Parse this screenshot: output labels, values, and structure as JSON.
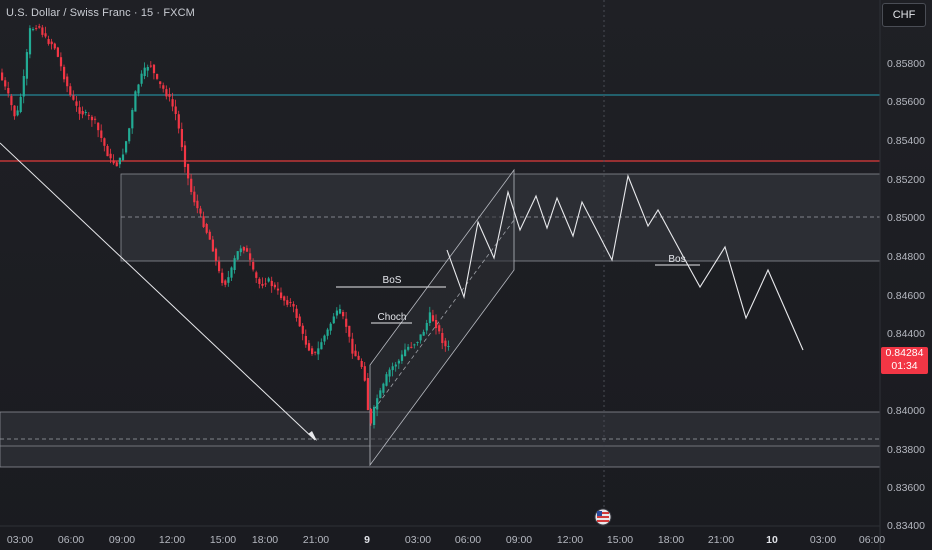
{
  "header": {
    "title": "U.S. Dollar / Swiss Franc · 15 · FXCM",
    "currency_button": "CHF"
  },
  "price_axis": {
    "labels": [
      "0.85800",
      "0.85600",
      "0.85400",
      "0.85200",
      "0.85000",
      "0.84800",
      "0.84600",
      "0.84400",
      "0.84000",
      "0.83800",
      "0.83600",
      "0.83400"
    ],
    "current_price": "0.84284",
    "countdown": "01:34"
  },
  "time_axis": {
    "labels": [
      "03:00",
      "06:00",
      "09:00",
      "12:00",
      "15:00",
      "18:00",
      "21:00",
      "9",
      "03:00",
      "06:00",
      "09:00",
      "12:00",
      "15:00",
      "18:00",
      "21:00",
      "10",
      "03:00",
      "06:00"
    ],
    "bold_labels": [
      "9",
      "10"
    ]
  },
  "annotations": {
    "bos_label": "BoS",
    "choch_label": "Choch",
    "bos_label_2": "Bos"
  },
  "colors": {
    "background": "#1d1e23",
    "bullish": "#22ab94",
    "bearish": "#f23645",
    "resistance_line": "#e03b3b",
    "upper_line": "#26a0b4",
    "zone_fill": "#2c2e34"
  },
  "icons": {
    "event": "us-flag-event-icon"
  }
}
